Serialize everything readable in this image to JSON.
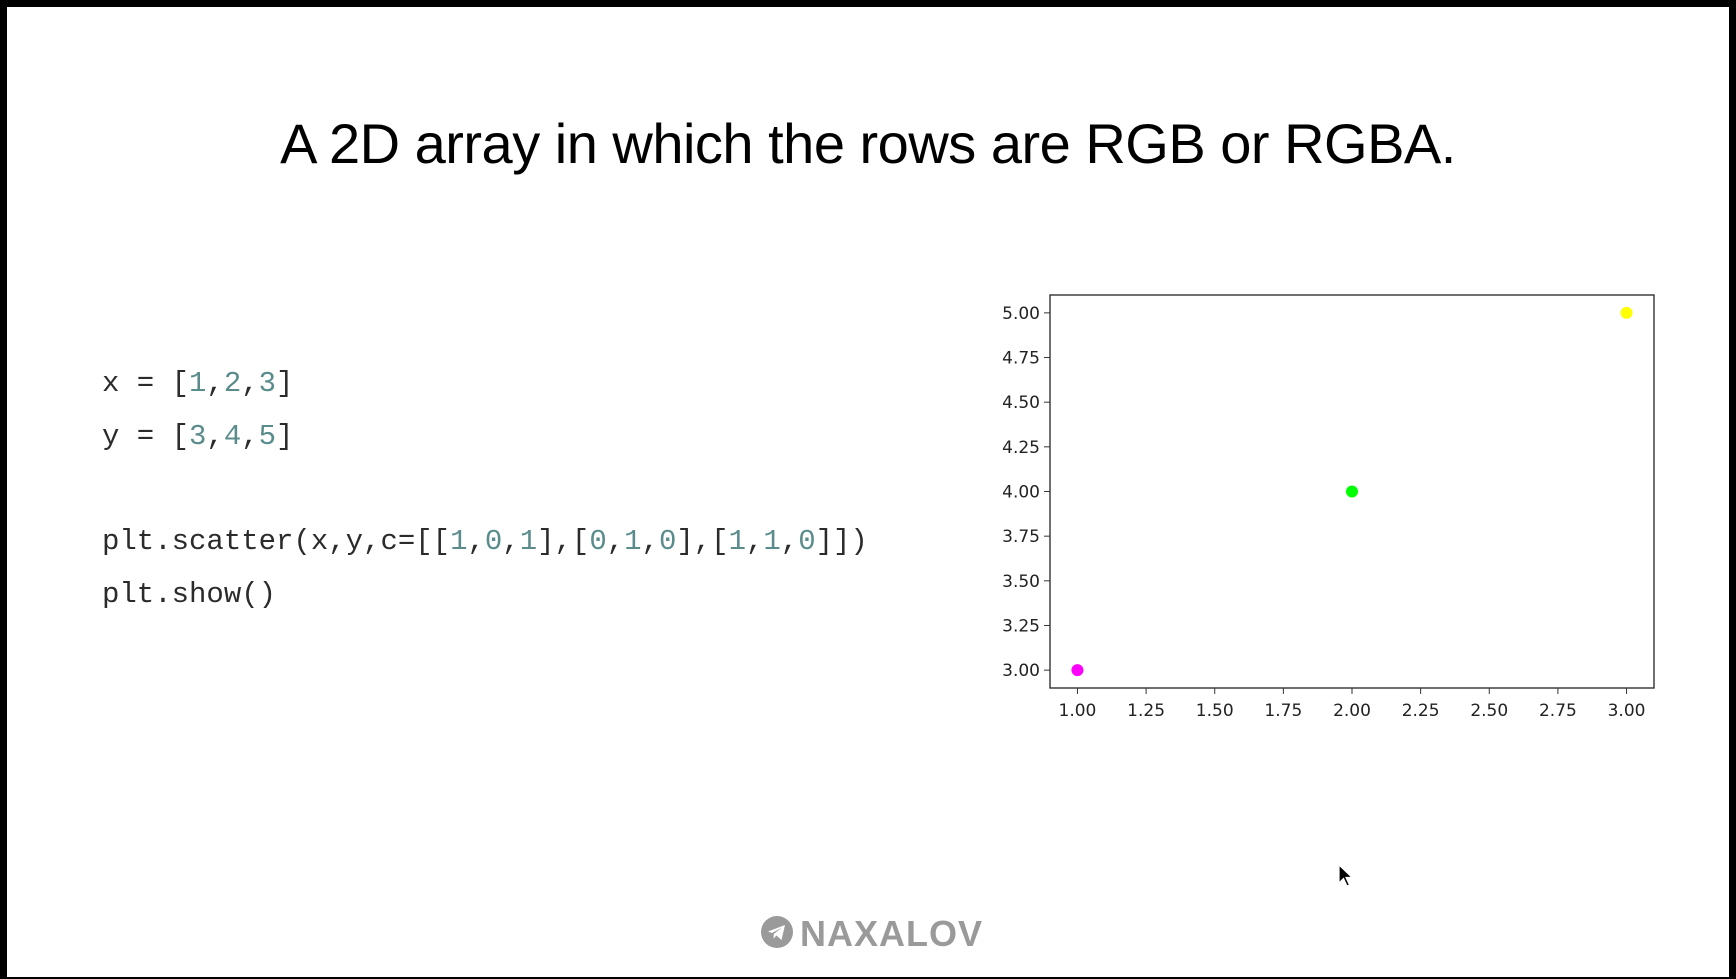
{
  "slide": {
    "title": "A 2D array in which the rows are RGB or RGBA.",
    "code": {
      "line1": [
        {
          "t": "x = [",
          "k": "txt"
        },
        {
          "t": "1",
          "k": "num"
        },
        {
          "t": ",",
          "k": "txt"
        },
        {
          "t": "2",
          "k": "num"
        },
        {
          "t": ",",
          "k": "txt"
        },
        {
          "t": "3",
          "k": "num"
        },
        {
          "t": "]",
          "k": "txt"
        }
      ],
      "line2": [
        {
          "t": "y = [",
          "k": "txt"
        },
        {
          "t": "3",
          "k": "num"
        },
        {
          "t": ",",
          "k": "txt"
        },
        {
          "t": "4",
          "k": "num"
        },
        {
          "t": ",",
          "k": "txt"
        },
        {
          "t": "5",
          "k": "num"
        },
        {
          "t": "]",
          "k": "txt"
        }
      ],
      "line3": [
        {
          "t": "plt.scatter(x,y,c=[[",
          "k": "txt"
        },
        {
          "t": "1",
          "k": "num"
        },
        {
          "t": ",",
          "k": "txt"
        },
        {
          "t": "0",
          "k": "num"
        },
        {
          "t": ",",
          "k": "txt"
        },
        {
          "t": "1",
          "k": "num"
        },
        {
          "t": "],[",
          "k": "txt"
        },
        {
          "t": "0",
          "k": "num"
        },
        {
          "t": ",",
          "k": "txt"
        },
        {
          "t": "1",
          "k": "num"
        },
        {
          "t": ",",
          "k": "txt"
        },
        {
          "t": "0",
          "k": "num"
        },
        {
          "t": "],[",
          "k": "txt"
        },
        {
          "t": "1",
          "k": "num"
        },
        {
          "t": ",",
          "k": "txt"
        },
        {
          "t": "1",
          "k": "num"
        },
        {
          "t": ",",
          "k": "txt"
        },
        {
          "t": "0",
          "k": "num"
        },
        {
          "t": "]])",
          "k": "txt"
        }
      ],
      "line4": [
        {
          "t": "plt.show()",
          "k": "txt"
        }
      ]
    },
    "watermark": "NAXALOV",
    "watermark_icon": "telegram-plane-icon",
    "cursor_icon": "mouse-pointer-icon"
  },
  "chart_data": {
    "type": "scatter",
    "x": [
      1,
      2,
      3
    ],
    "y": [
      3,
      4,
      5
    ],
    "colors": [
      "#ff00ff",
      "#00ff00",
      "#ffff00"
    ],
    "xlim": [
      0.9,
      3.1
    ],
    "ylim": [
      2.9,
      5.1
    ],
    "xticks": [
      "1.00",
      "1.25",
      "1.50",
      "1.75",
      "2.00",
      "2.25",
      "2.50",
      "2.75",
      "3.00"
    ],
    "yticks": [
      "3.00",
      "3.25",
      "3.50",
      "3.75",
      "4.00",
      "4.25",
      "4.50",
      "4.75",
      "5.00"
    ],
    "title": "",
    "xlabel": "",
    "ylabel": "",
    "grid": false
  }
}
